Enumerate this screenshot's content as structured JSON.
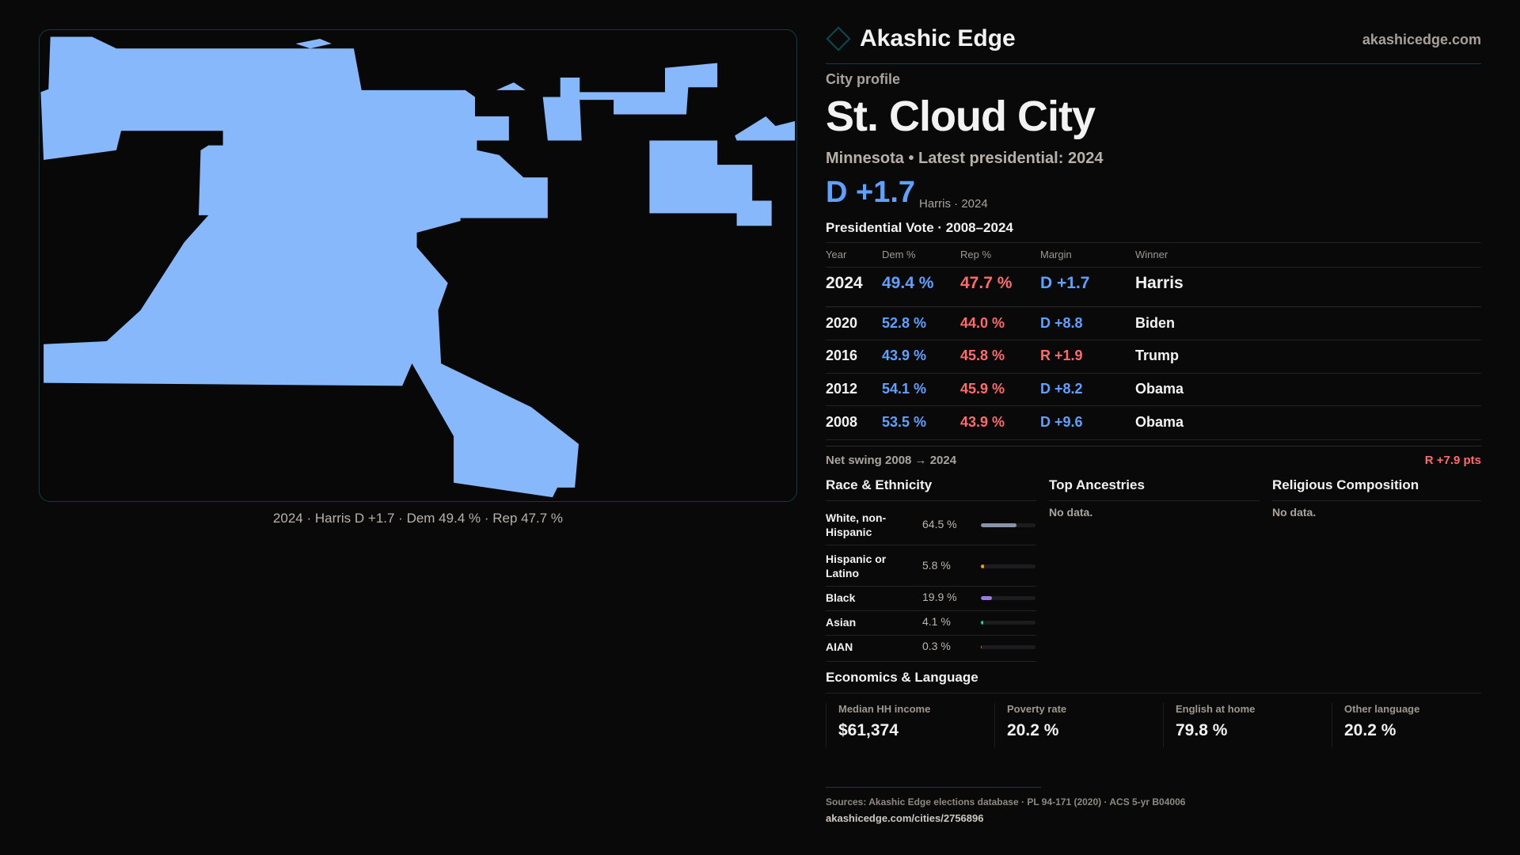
{
  "brand": {
    "name": "Akashic Edge",
    "site": "akashicedge.com"
  },
  "profile": {
    "kicker": "City profile",
    "title": "St. Cloud City",
    "subtitle": "Minnesota • Latest presidential: 2024",
    "margin": "D +1.7",
    "margin_note": "Harris · 2024"
  },
  "map": {
    "fill": "#86b8fb",
    "caption": "2024 · Harris D +1.7 · Dem 49.4 % · Rep 47.7 %"
  },
  "votes": {
    "title": "Presidential Vote · 2008–2024",
    "headers": [
      "Year",
      "Dem %",
      "Rep %",
      "Margin",
      "Winner"
    ],
    "rows": [
      {
        "year": "2024",
        "dem": "49.4 %",
        "rep": "47.7 %",
        "margin": "D +1.7",
        "party": "D",
        "winner": "Harris"
      },
      {
        "year": "2020",
        "dem": "52.8 %",
        "rep": "44.0 %",
        "margin": "D +8.8",
        "party": "D",
        "winner": "Biden"
      },
      {
        "year": "2016",
        "dem": "43.9 %",
        "rep": "45.8 %",
        "margin": "R +1.9",
        "party": "R",
        "winner": "Trump"
      },
      {
        "year": "2012",
        "dem": "54.1 %",
        "rep": "45.9 %",
        "margin": "D +8.2",
        "party": "D",
        "winner": "Obama"
      },
      {
        "year": "2008",
        "dem": "53.5 %",
        "rep": "43.9 %",
        "margin": "D +9.6",
        "party": "D",
        "winner": "Obama"
      }
    ],
    "swing_label": "Net swing 2008 → 2024",
    "swing_value": "R +7.9 pts"
  },
  "race": {
    "title": "Race & Ethnicity",
    "items": [
      {
        "label": "White, non-Hispanic",
        "value": "64.5 %",
        "pct": 64.5,
        "color": "#8a94a8"
      },
      {
        "label": "Hispanic or Latino",
        "value": "5.8 %",
        "pct": 5.8,
        "color": "#f0a000"
      },
      {
        "label": "Black",
        "value": "19.9 %",
        "pct": 19.9,
        "color": "#9b7be0"
      },
      {
        "label": "Asian",
        "value": "4.1 %",
        "pct": 4.1,
        "color": "#2ecc9a"
      },
      {
        "label": "AIAN",
        "value": "0.3 %",
        "pct": 0.3,
        "color": "#e07b20"
      }
    ]
  },
  "ancestries": {
    "title": "Top Ancestries",
    "empty": "No data."
  },
  "religion": {
    "title": "Religious Composition",
    "empty": "No data."
  },
  "economics": {
    "title": "Economics & Language",
    "stats": [
      {
        "label": "Median HH income",
        "value": "$61,374"
      },
      {
        "label": "Poverty rate",
        "value": "20.2 %"
      },
      {
        "label": "English at home",
        "value": "79.8 %"
      },
      {
        "label": "Other language",
        "value": "20.2 %"
      }
    ]
  },
  "footer": {
    "sources": "Sources: Akashic Edge elections database · PL 94-171 (2020) · ACS 5-yr B04006",
    "url": "akashicedge.com/cities/2756896"
  }
}
